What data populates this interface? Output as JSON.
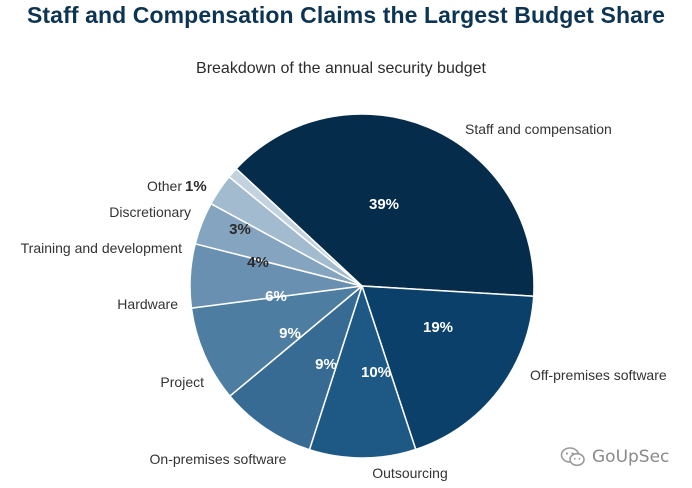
{
  "title": "Staff and Compensation Claims the Largest Budget Share",
  "watermark": {
    "text": "GoUpSec",
    "icon": "wechat-icon"
  },
  "colors": {
    "title": "#0d3553",
    "slices": [
      "#062c4c",
      "#0b406b",
      "#1e5986",
      "#376b94",
      "#4e7da2",
      "#6a90b1",
      "#84a4bf",
      "#a3bbcf",
      "#c3d2df"
    ]
  },
  "chart_data": {
    "type": "pie",
    "title": "Breakdown of the annual security budget",
    "categories": [
      "Staff and compensation",
      "Off-premises software",
      "Outsourcing",
      "On-premises software",
      "Project",
      "Hardware",
      "Training and development",
      "Discretionary",
      "Other"
    ],
    "values": [
      39,
      19,
      10,
      9,
      9,
      6,
      4,
      3,
      1
    ],
    "value_labels": [
      "39%",
      "19%",
      "10%",
      "9%",
      "9%",
      "6%",
      "4%",
      "3%",
      "1%"
    ],
    "start_angle_deg": -137,
    "direction": "clockwise"
  }
}
